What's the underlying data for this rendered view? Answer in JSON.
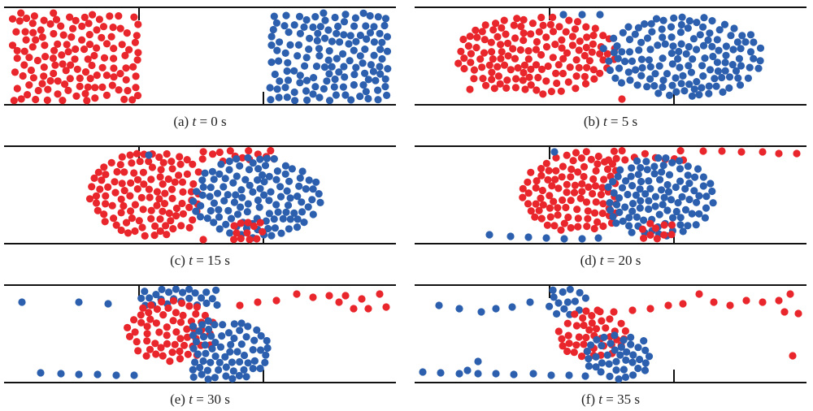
{
  "colors": {
    "red": "#e8262b",
    "blue": "#2c5fad",
    "wall": "#111111"
  },
  "panels": [
    {
      "id": "a",
      "caption": {
        "prefix": "(a) ",
        "var": "t",
        "rest": " = 0 s"
      }
    },
    {
      "id": "b",
      "caption": {
        "prefix": "(b) ",
        "var": "t",
        "rest": " = 5 s"
      }
    },
    {
      "id": "c",
      "caption": {
        "prefix": "(c) ",
        "var": "t",
        "rest": " = 15 s"
      }
    },
    {
      "id": "d",
      "caption": {
        "prefix": "(d) ",
        "var": "t",
        "rest": " = 20 s"
      }
    },
    {
      "id": "e",
      "caption": {
        "prefix": "(e) ",
        "var": "t",
        "rest": " = 30 s"
      }
    },
    {
      "id": "f",
      "caption": {
        "prefix": "(f) ",
        "var": "t",
        "rest": " = 35 s"
      }
    }
  ]
}
